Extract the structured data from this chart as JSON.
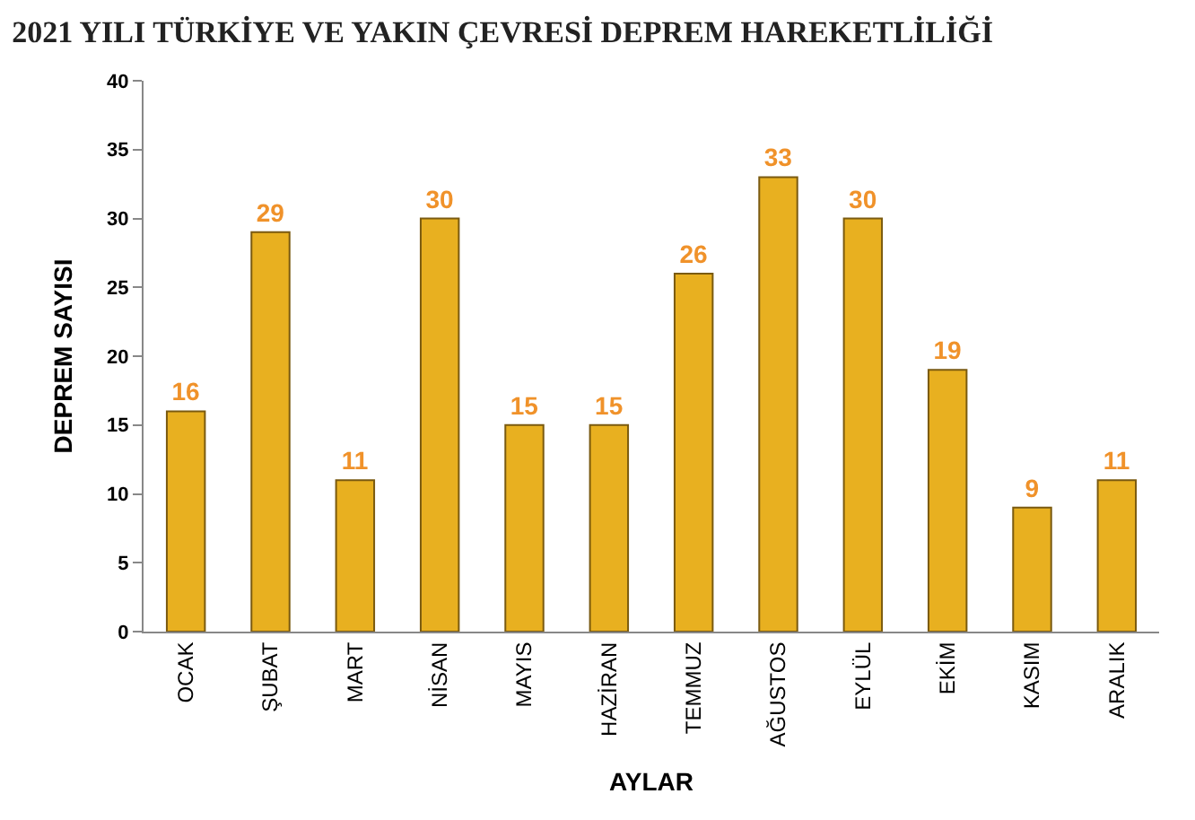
{
  "chart_data": {
    "type": "bar",
    "title": "2021 YILI TÜRKİYE VE YAKIN ÇEVRESİ DEPREM HAREKETLİLİĞİ",
    "xlabel": "AYLAR",
    "ylabel": "DEPREM SAYISI",
    "categories": [
      "OCAK",
      "ŞUBAT",
      "MART",
      "NİSAN",
      "MAYIS",
      "HAZİRAN",
      "TEMMUZ",
      "AĞUSTOS",
      "EYLÜL",
      "EKİM",
      "KASIM",
      "ARALIK"
    ],
    "values": [
      16,
      29,
      11,
      30,
      15,
      15,
      26,
      33,
      30,
      19,
      9,
      11
    ],
    "color": "#e8b020",
    "ylim": [
      0,
      40
    ],
    "yticks": [
      0,
      5,
      10,
      15,
      20,
      25,
      30,
      35,
      40
    ],
    "data_labels": true
  }
}
